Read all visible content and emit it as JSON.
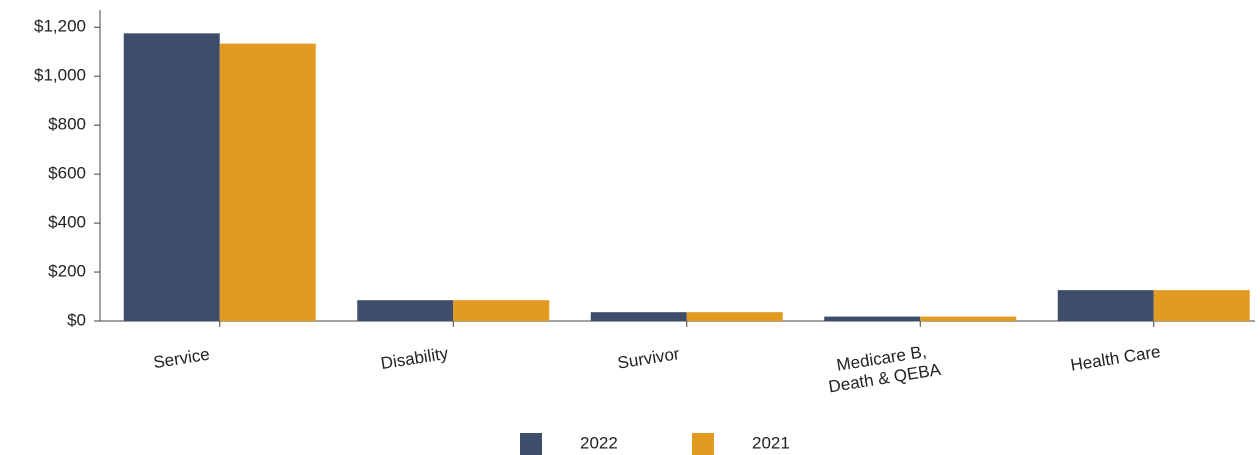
{
  "chart_data": {
    "type": "bar",
    "categories": [
      "Service",
      "Disability",
      "Survivor",
      "Medicare B,\nDeath & QEBA",
      "Health Care"
    ],
    "series": [
      {
        "name": "2022",
        "color": "#3d4d6a",
        "values": [
          1175,
          85,
          36,
          18,
          126
        ]
      },
      {
        "name": "2021",
        "color": "#e09b20",
        "values": [
          1133,
          85,
          36,
          18,
          126
        ]
      }
    ],
    "ylim": [
      0,
      1250
    ],
    "yticks": [
      {
        "value": 0,
        "label": "$0"
      },
      {
        "value": 200,
        "label": "$200"
      },
      {
        "value": 400,
        "label": "$400"
      },
      {
        "value": 600,
        "label": "$600"
      },
      {
        "value": 800,
        "label": "$800"
      },
      {
        "value": 1000,
        "label": "$1,000"
      },
      {
        "value": 1200,
        "label": "$1,200"
      }
    ],
    "legend": "bottom"
  }
}
